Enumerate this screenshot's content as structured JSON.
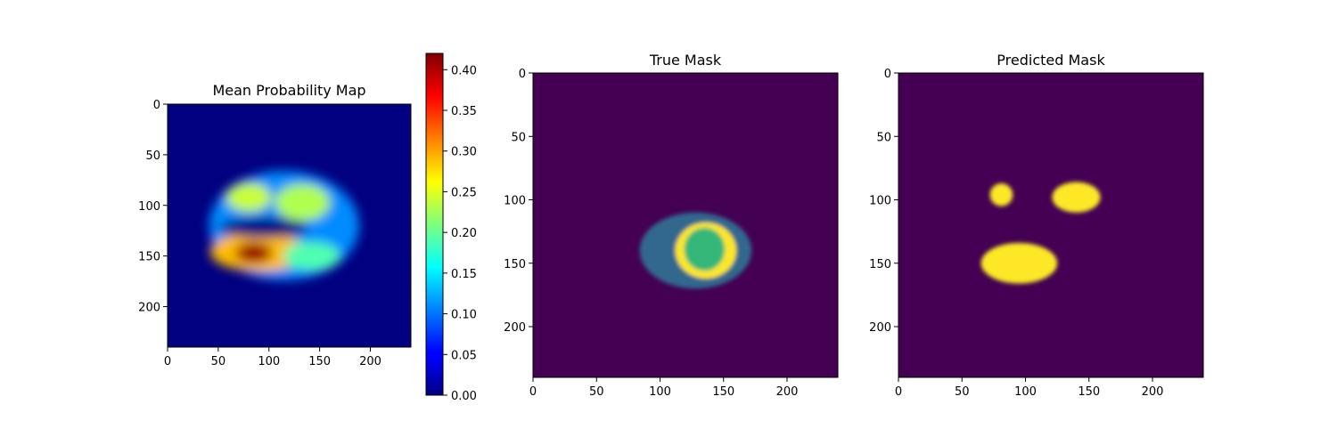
{
  "chart_data": [
    {
      "type": "heatmap",
      "title": "Mean Probability Map",
      "xlabel": "",
      "ylabel": "",
      "xlim": [
        0,
        240
      ],
      "ylim": [
        240,
        0
      ],
      "x_ticks": [
        0,
        50,
        100,
        150,
        200
      ],
      "y_ticks": [
        0,
        50,
        100,
        150,
        200
      ],
      "colormap": "jet",
      "colorbar": {
        "range": [
          0,
          0.42
        ],
        "ticks": [
          "0.00",
          "0.05",
          "0.10",
          "0.15",
          "0.20",
          "0.25",
          "0.30",
          "0.35",
          "0.40"
        ]
      },
      "background_value": 0.0,
      "regions": [
        {
          "cx": 115,
          "cy": 120,
          "rx": 74,
          "ry": 54,
          "value": 0.11
        },
        {
          "cx": 90,
          "cy": 146,
          "rx": 48,
          "ry": 19,
          "value": 0.29
        },
        {
          "cx": 85,
          "cy": 147,
          "rx": 18,
          "ry": 10,
          "value": 0.41
        },
        {
          "cx": 80,
          "cy": 92,
          "rx": 22,
          "ry": 14,
          "value": 0.24
        },
        {
          "cx": 133,
          "cy": 97,
          "rx": 27,
          "ry": 18,
          "value": 0.23
        },
        {
          "cx": 142,
          "cy": 150,
          "rx": 28,
          "ry": 14,
          "value": 0.19
        },
        {
          "cx": 95,
          "cy": 122,
          "rx": 44,
          "ry": 10,
          "value": 0.0
        }
      ]
    },
    {
      "type": "heatmap",
      "title": "True Mask",
      "xlabel": "",
      "ylabel": "",
      "xlim": [
        0,
        240
      ],
      "ylim": [
        240,
        0
      ],
      "x_ticks": [
        0,
        50,
        100,
        150,
        200
      ],
      "y_ticks": [
        0,
        50,
        100,
        150,
        200
      ],
      "colormap": "viridis",
      "background_value": 0,
      "regions": [
        {
          "cx": 128,
          "cy": 140,
          "rx": 44,
          "ry": 30,
          "value": 1
        },
        {
          "cx": 136,
          "cy": 140,
          "rx": 24,
          "ry": 22,
          "value": 3
        },
        {
          "cx": 135,
          "cy": 139,
          "rx": 16,
          "ry": 17,
          "value": 2
        }
      ]
    },
    {
      "type": "heatmap",
      "title": "Predicted Mask",
      "xlabel": "",
      "ylabel": "",
      "xlim": [
        0,
        240
      ],
      "ylim": [
        240,
        0
      ],
      "x_ticks": [
        0,
        50,
        100,
        150,
        200
      ],
      "y_ticks": [
        0,
        50,
        100,
        150,
        200
      ],
      "colormap": "viridis",
      "background_value": 0,
      "regions": [
        {
          "cx": 81,
          "cy": 96,
          "rx": 9,
          "ry": 9,
          "value": 1
        },
        {
          "cx": 140,
          "cy": 98,
          "rx": 19,
          "ry": 12,
          "value": 1
        },
        {
          "cx": 95,
          "cy": 150,
          "rx": 30,
          "ry": 16,
          "value": 1
        }
      ]
    }
  ]
}
